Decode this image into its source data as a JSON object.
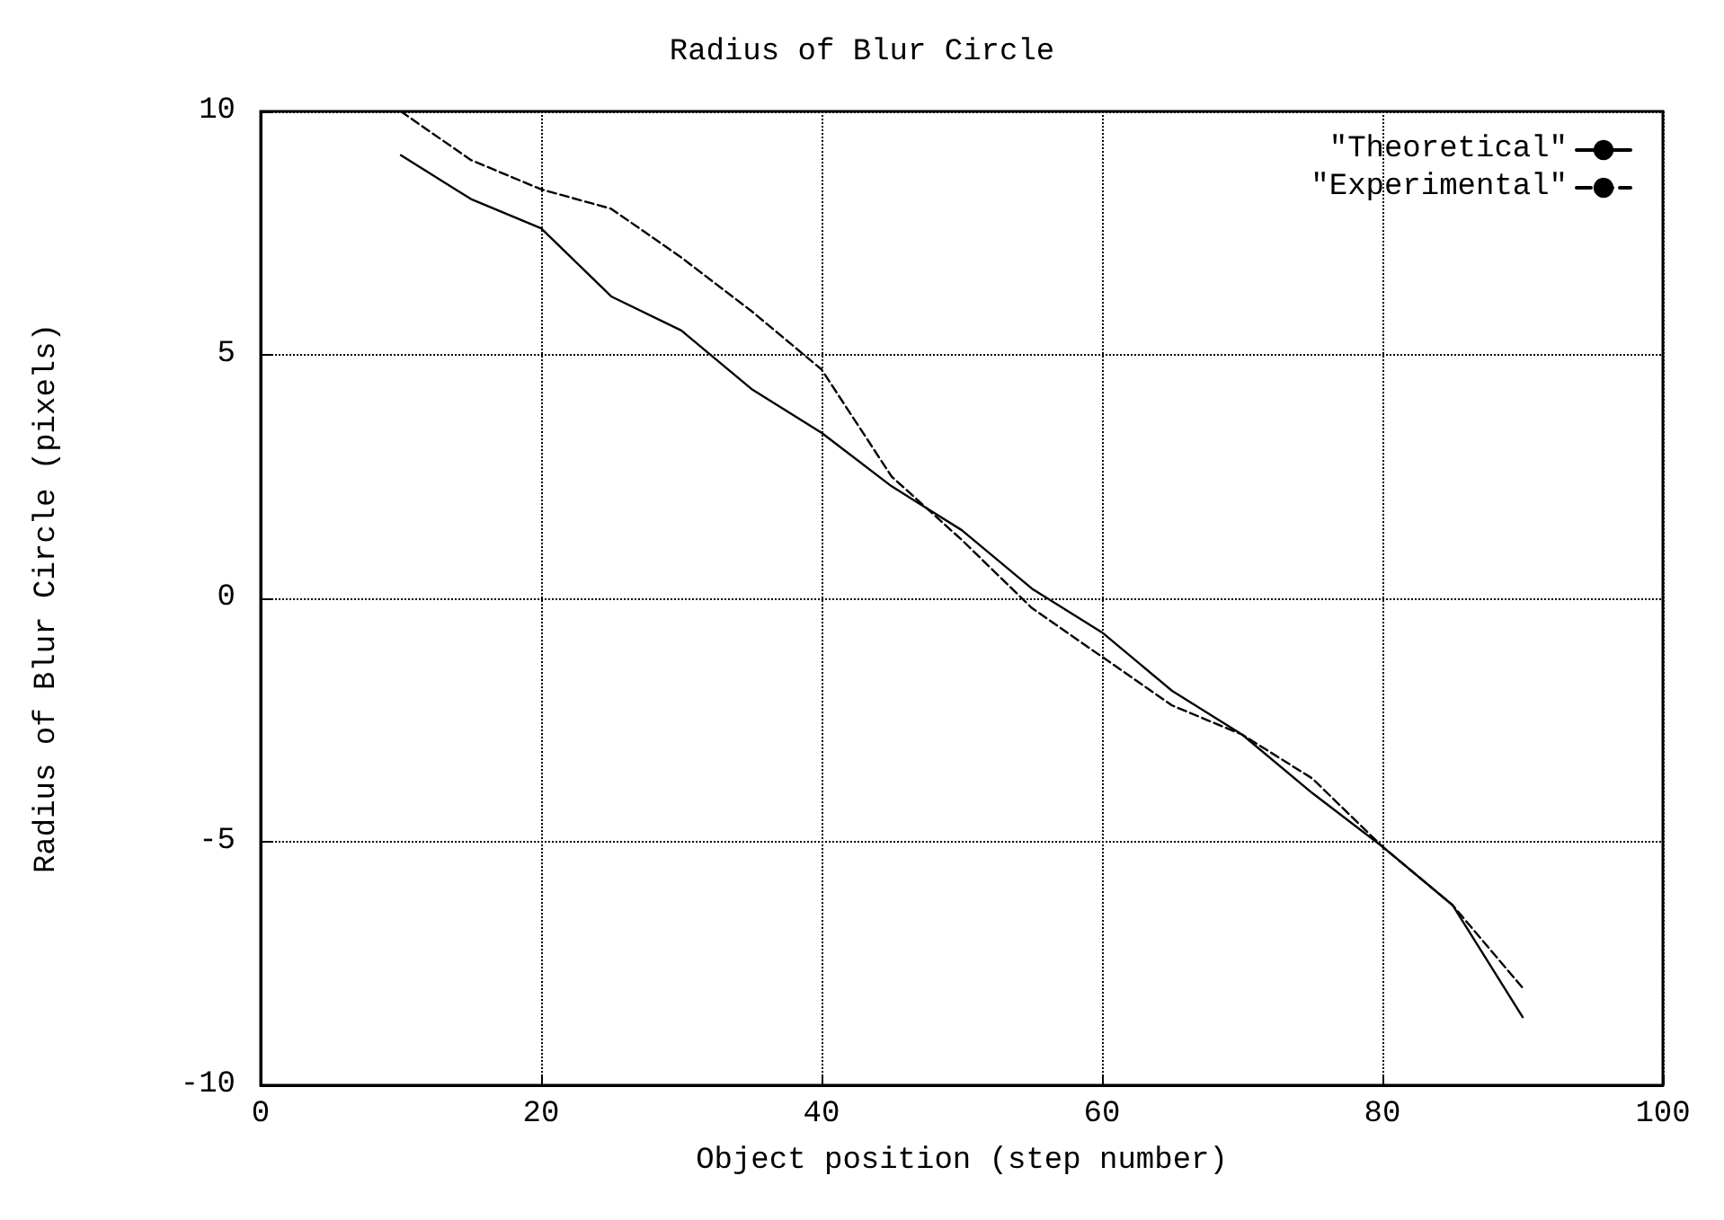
{
  "chart_data": {
    "type": "line",
    "title": "Radius of Blur Circle",
    "xlabel": "Object position (step number)",
    "ylabel": "Radius of Blur Circle (pixels)",
    "x": [
      10,
      15,
      20,
      25,
      30,
      35,
      40,
      45,
      50,
      55,
      60,
      65,
      70,
      75,
      80,
      85,
      90
    ],
    "series": [
      {
        "name": "\"Theoretical\"",
        "color": "#000000",
        "line_style": "solid",
        "values": [
          9.1,
          8.2,
          7.6,
          6.2,
          5.5,
          4.3,
          3.4,
          2.3,
          1.4,
          0.2,
          -0.7,
          -1.9,
          -2.8,
          -4.0,
          -5.1,
          -6.3,
          -8.6
        ]
      },
      {
        "name": "\"Experimental\"",
        "color": "#000000",
        "line_style": "dashed",
        "values": [
          10.0,
          9.0,
          8.4,
          8.0,
          7.0,
          5.9,
          4.7,
          2.5,
          1.2,
          -0.2,
          -1.2,
          -2.2,
          -2.8,
          -3.7,
          -5.1,
          -6.3,
          -8.0
        ]
      }
    ],
    "xlim": [
      0,
      100
    ],
    "xticks": [
      0,
      20,
      40,
      60,
      80,
      100
    ],
    "ylim": [
      -10,
      10
    ],
    "yticks": [
      -10,
      -5,
      0,
      5,
      10
    ],
    "grid": true,
    "legend": "top right",
    "marker": "none"
  }
}
